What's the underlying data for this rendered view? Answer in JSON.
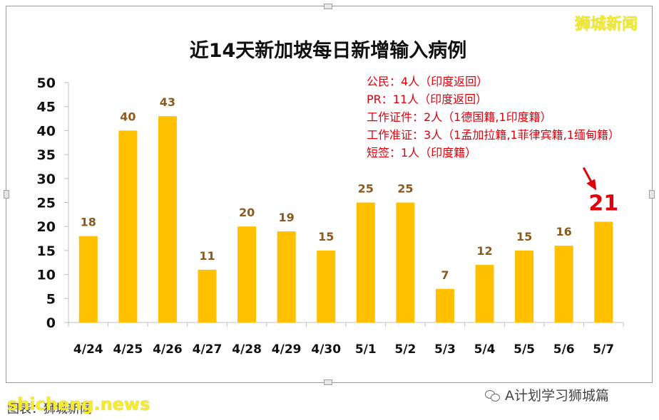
{
  "watermark": "狮城新闻",
  "footer": {
    "left_text": "图表：狮城新闻",
    "left_overlay": "shicheng.news",
    "right_text": "A计划学习狮城篇",
    "right_icon": "wechat-icon"
  },
  "chart_data": {
    "type": "bar",
    "title": "近14天新加坡每日新增输入病例",
    "categories": [
      "4/24",
      "4/25",
      "4/26",
      "4/27",
      "4/28",
      "4/29",
      "4/30",
      "5/1",
      "5/2",
      "5/3",
      "5/4",
      "5/5",
      "5/6",
      "5/7"
    ],
    "values": [
      18,
      40,
      43,
      11,
      20,
      19,
      15,
      25,
      25,
      7,
      12,
      15,
      16,
      21
    ],
    "ylim": [
      0,
      50
    ],
    "yticks": [
      0,
      5,
      10,
      15,
      20,
      25,
      30,
      35,
      40,
      45,
      50
    ],
    "grid": false,
    "bar_color": "#ffc000",
    "label_color": "#8a5a1e",
    "highlight": {
      "category": "5/7",
      "color": "#e0000c"
    },
    "annotations": [
      "公民：4人（印度返回）",
      "PR：11人（印度返回）",
      "工作证件：2人（1德国籍,1印度籍）",
      "工作准证：3人（1孟加拉籍,1菲律宾籍,1缅甸籍）",
      "短签：1人（印度籍）"
    ]
  }
}
